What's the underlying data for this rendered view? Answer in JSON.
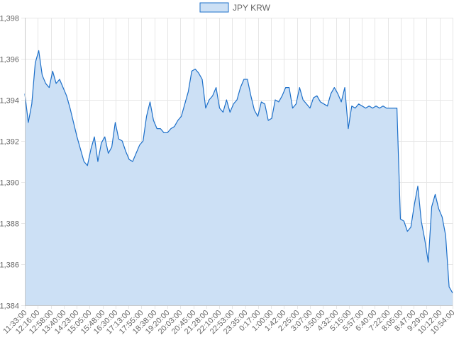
{
  "chart_data": {
    "type": "area",
    "legend": {
      "position": "top",
      "entries": [
        "JPY KRW"
      ]
    },
    "series": [
      {
        "name": "JPY KRW",
        "stroke_color": "#1c6fc9",
        "fill_color": "#cce0f5",
        "values": [
          1394.3,
          1392.9,
          1393.8,
          1395.8,
          1396.4,
          1395.2,
          1394.8,
          1394.6,
          1395.4,
          1394.8,
          1395.0,
          1394.6,
          1394.2,
          1393.6,
          1392.9,
          1392.2,
          1391.6,
          1391.0,
          1390.8,
          1391.6,
          1392.2,
          1391.0,
          1391.9,
          1392.2,
          1391.4,
          1391.7,
          1392.9,
          1392.1,
          1392.0,
          1391.5,
          1391.1,
          1391.0,
          1391.4,
          1391.8,
          1392.0,
          1393.2,
          1393.9,
          1393.0,
          1392.6,
          1392.6,
          1392.4,
          1392.4,
          1392.6,
          1392.7,
          1393.0,
          1393.2,
          1393.8,
          1394.4,
          1395.4,
          1395.5,
          1395.3,
          1395.0,
          1393.6,
          1394.0,
          1394.2,
          1394.6,
          1393.6,
          1393.4,
          1394.0,
          1393.4,
          1393.8,
          1394.0,
          1394.6,
          1395.0,
          1395.0,
          1394.2,
          1393.5,
          1393.2,
          1393.9,
          1393.8,
          1393.0,
          1393.1,
          1394.0,
          1393.9,
          1394.2,
          1394.6,
          1394.6,
          1393.6,
          1393.8,
          1394.6,
          1394.0,
          1393.8,
          1393.6,
          1394.1,
          1394.2,
          1393.9,
          1393.8,
          1393.7,
          1394.3,
          1394.6,
          1394.3,
          1393.9,
          1394.6,
          1392.6,
          1393.7,
          1393.6,
          1393.8,
          1393.7,
          1393.6,
          1393.7,
          1393.6,
          1393.7,
          1393.6,
          1393.7,
          1393.6,
          1393.6,
          1393.6,
          1393.6,
          1388.2,
          1388.1,
          1387.6,
          1387.8,
          1388.9,
          1389.8,
          1388.1,
          1387.2,
          1386.1,
          1388.8,
          1389.4,
          1388.7,
          1388.3,
          1387.4,
          1384.9,
          1384.6
        ]
      }
    ],
    "x_tick_labels": [
      "11:33:00",
      "12:16:00",
      "12:58:00",
      "13:40:00",
      "14:23:00",
      "15:05:00",
      "15:48:00",
      "16:30:00",
      "17:13:00",
      "17:55:00",
      "18:38:00",
      "19:20:00",
      "20:03:00",
      "20:45:00",
      "21:28:00",
      "22:10:00",
      "22:53:00",
      "23:35:00",
      "0:17:00",
      "1:00:00",
      "1:42:00",
      "2:25:00",
      "3:07:00",
      "3:50:00",
      "4:32:00",
      "5:15:00",
      "5:57:00",
      "6:40:00",
      "7:22:00",
      "8:05:00",
      "8:47:00",
      "9:29:00",
      "10:12:00",
      "10:54:00"
    ],
    "y_tick_labels": [
      "1,384",
      "1,386",
      "1,388",
      "1,390",
      "1,392",
      "1,394",
      "1,396",
      "1,398"
    ],
    "ylim": [
      1384,
      1398
    ],
    "y_step": 2,
    "grid": true
  }
}
